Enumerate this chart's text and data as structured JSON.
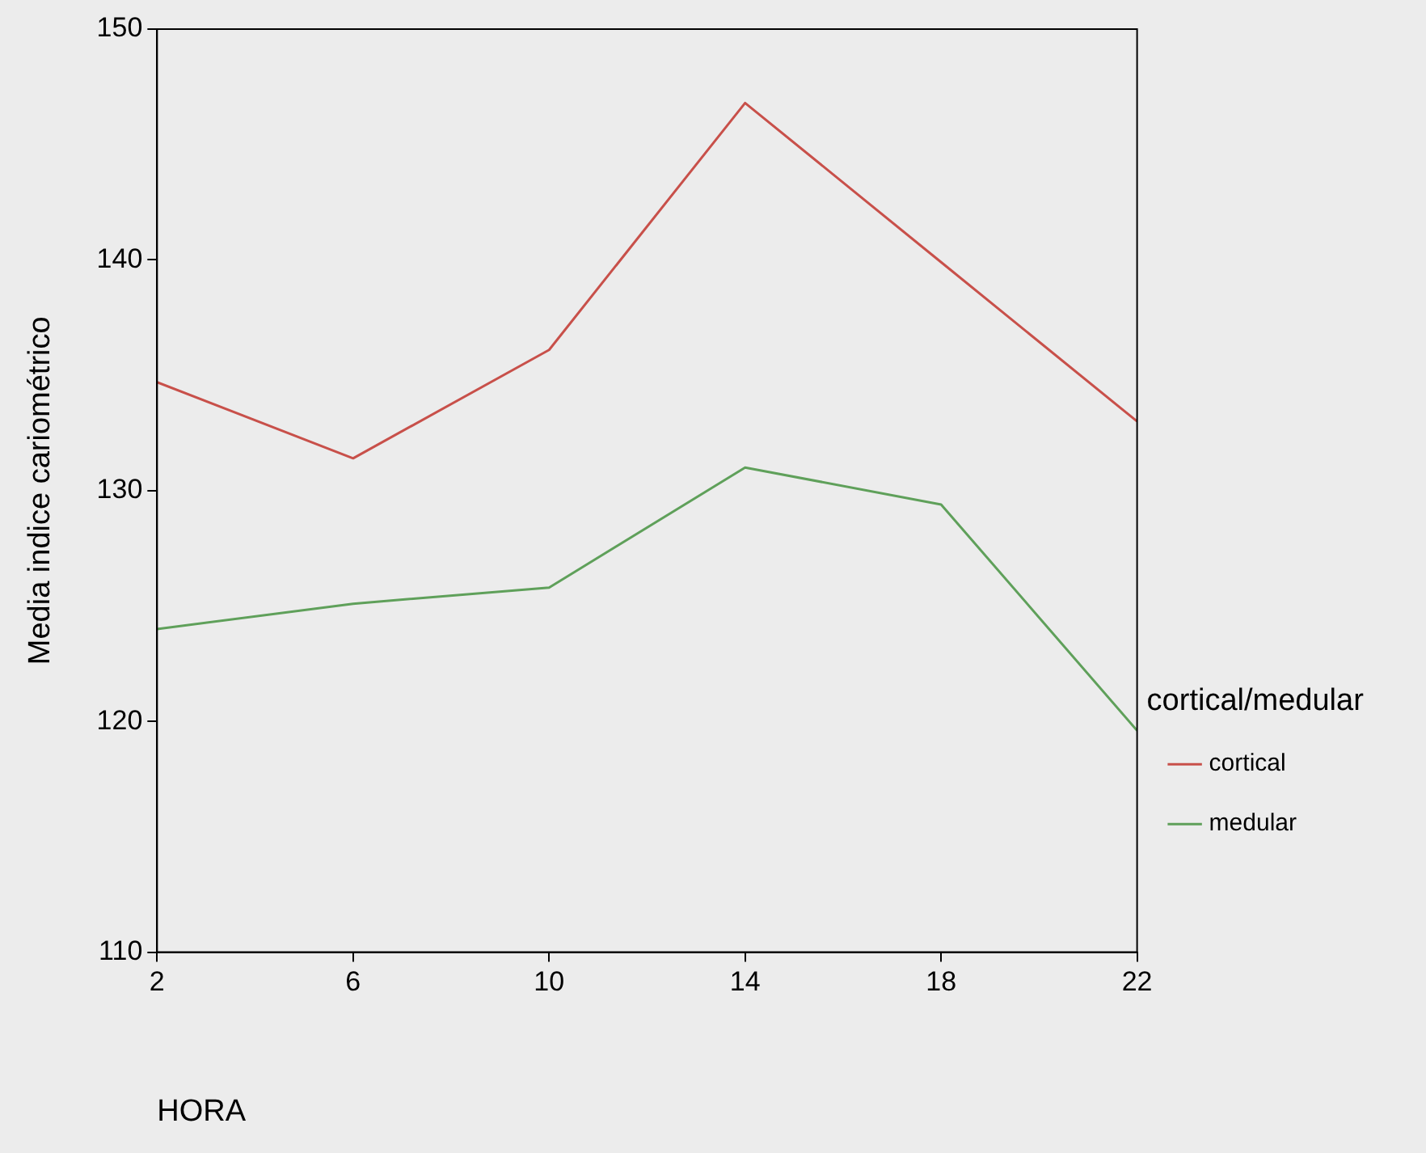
{
  "chart_data": {
    "type": "line",
    "xlabel": "HORA",
    "ylabel": "Media indice cariométrico",
    "legend_title": "cortical/medular",
    "x": [
      2,
      6,
      10,
      14,
      18,
      22
    ],
    "series": [
      {
        "name": "cortical",
        "color": "#c8504a",
        "values": [
          134.7,
          131.4,
          136.1,
          146.8,
          139.9,
          133.0
        ]
      },
      {
        "name": "medular",
        "color": "#5fa05a",
        "values": [
          124.0,
          125.1,
          125.8,
          131.0,
          129.4,
          119.6
        ]
      }
    ],
    "xlim": [
      2,
      22
    ],
    "xticks": [
      2,
      6,
      10,
      14,
      18,
      22
    ],
    "ylim": [
      110,
      150
    ],
    "yticks": [
      110,
      120,
      130,
      140,
      150
    ],
    "grid": false,
    "legend": "right",
    "marker": "none",
    "line_style": "solid"
  }
}
